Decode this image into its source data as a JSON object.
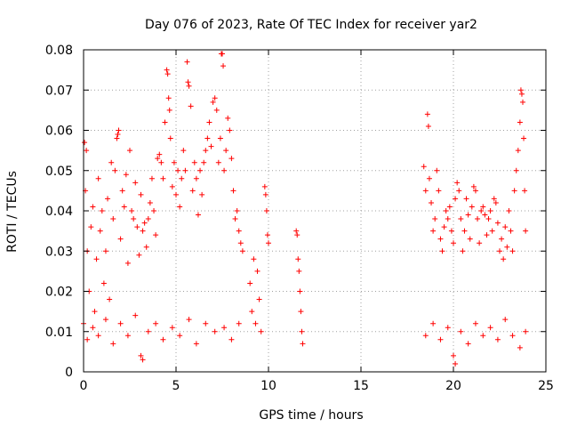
{
  "chart_data": {
    "type": "scatter",
    "title": "Day 076 of 2023, Rate Of TEC Index for receiver yar2",
    "xlabel": "GPS time / hours",
    "ylabel": "ROTI / TECUs",
    "xlim": [
      0,
      25
    ],
    "ylim": [
      0,
      0.08
    ],
    "x_ticks": [
      0,
      5,
      10,
      15,
      20,
      25
    ],
    "x_tick_labels": [
      "0",
      "5",
      "10",
      "15",
      "20",
      "25"
    ],
    "y_ticks": [
      0,
      0.01,
      0.02,
      0.03,
      0.04,
      0.05,
      0.06,
      0.07,
      0.08
    ],
    "y_tick_labels": [
      "0",
      "0.01",
      "0.02",
      "0.03",
      "0.04",
      "0.05",
      "0.06",
      "0.07",
      "0.08"
    ],
    "grid": true,
    "marker": "+",
    "color": "#ff0000",
    "series": [
      {
        "name": "yar2",
        "density_note": "dense plus-markers; values listed are representative readings",
        "points": [
          [
            0.0,
            0.012
          ],
          [
            0.05,
            0.057
          ],
          [
            0.1,
            0.045
          ],
          [
            0.15,
            0.055
          ],
          [
            0.2,
            0.03
          ],
          [
            0.3,
            0.02
          ],
          [
            0.4,
            0.036
          ],
          [
            0.5,
            0.041
          ],
          [
            0.6,
            0.015
          ],
          [
            0.7,
            0.028
          ],
          [
            0.8,
            0.048
          ],
          [
            0.9,
            0.035
          ],
          [
            1.0,
            0.04
          ],
          [
            1.1,
            0.022
          ],
          [
            1.2,
            0.03
          ],
          [
            1.3,
            0.043
          ],
          [
            1.4,
            0.018
          ],
          [
            1.5,
            0.052
          ],
          [
            1.6,
            0.038
          ],
          [
            1.7,
            0.05
          ],
          [
            1.8,
            0.058
          ],
          [
            1.85,
            0.059
          ],
          [
            1.9,
            0.06
          ],
          [
            2.0,
            0.033
          ],
          [
            2.1,
            0.045
          ],
          [
            2.2,
            0.041
          ],
          [
            2.3,
            0.049
          ],
          [
            2.4,
            0.027
          ],
          [
            2.5,
            0.055
          ],
          [
            2.6,
            0.04
          ],
          [
            2.7,
            0.038
          ],
          [
            2.8,
            0.047
          ],
          [
            2.9,
            0.036
          ],
          [
            3.0,
            0.029
          ],
          [
            3.1,
            0.044
          ],
          [
            3.2,
            0.035
          ],
          [
            3.3,
            0.037
          ],
          [
            3.4,
            0.031
          ],
          [
            3.5,
            0.038
          ],
          [
            3.6,
            0.042
          ],
          [
            3.7,
            0.048
          ],
          [
            3.8,
            0.04
          ],
          [
            3.9,
            0.034
          ],
          [
            4.0,
            0.053
          ],
          [
            4.1,
            0.054
          ],
          [
            4.2,
            0.052
          ],
          [
            4.3,
            0.048
          ],
          [
            4.4,
            0.062
          ],
          [
            4.5,
            0.075
          ],
          [
            4.55,
            0.074
          ],
          [
            4.6,
            0.068
          ],
          [
            4.65,
            0.065
          ],
          [
            4.7,
            0.058
          ],
          [
            4.8,
            0.046
          ],
          [
            4.9,
            0.052
          ],
          [
            5.0,
            0.044
          ],
          [
            5.1,
            0.05
          ],
          [
            5.2,
            0.041
          ],
          [
            5.3,
            0.048
          ],
          [
            5.4,
            0.055
          ],
          [
            5.5,
            0.05
          ],
          [
            5.6,
            0.077
          ],
          [
            5.65,
            0.072
          ],
          [
            5.7,
            0.071
          ],
          [
            5.8,
            0.066
          ],
          [
            5.9,
            0.045
          ],
          [
            6.0,
            0.052
          ],
          [
            6.1,
            0.048
          ],
          [
            6.2,
            0.039
          ],
          [
            6.3,
            0.05
          ],
          [
            6.4,
            0.044
          ],
          [
            6.5,
            0.052
          ],
          [
            6.6,
            0.055
          ],
          [
            6.7,
            0.058
          ],
          [
            6.8,
            0.062
          ],
          [
            6.9,
            0.056
          ],
          [
            7.0,
            0.067
          ],
          [
            7.1,
            0.068
          ],
          [
            7.2,
            0.065
          ],
          [
            7.3,
            0.052
          ],
          [
            7.4,
            0.058
          ],
          [
            7.45,
            0.079
          ],
          [
            7.5,
            0.079
          ],
          [
            7.55,
            0.076
          ],
          [
            7.6,
            0.05
          ],
          [
            7.7,
            0.055
          ],
          [
            7.8,
            0.063
          ],
          [
            7.9,
            0.06
          ],
          [
            8.0,
            0.053
          ],
          [
            8.1,
            0.045
          ],
          [
            8.2,
            0.038
          ],
          [
            8.3,
            0.04
          ],
          [
            8.4,
            0.035
          ],
          [
            8.5,
            0.032
          ],
          [
            8.6,
            0.03
          ],
          [
            9.0,
            0.022
          ],
          [
            9.1,
            0.015
          ],
          [
            9.2,
            0.028
          ],
          [
            9.3,
            0.012
          ],
          [
            9.4,
            0.025
          ],
          [
            9.5,
            0.018
          ],
          [
            9.6,
            0.01
          ],
          [
            9.8,
            0.046
          ],
          [
            9.85,
            0.044
          ],
          [
            9.9,
            0.04
          ],
          [
            9.95,
            0.034
          ],
          [
            10.0,
            0.032
          ],
          [
            11.5,
            0.035
          ],
          [
            11.55,
            0.034
          ],
          [
            11.6,
            0.028
          ],
          [
            11.65,
            0.025
          ],
          [
            11.7,
            0.02
          ],
          [
            11.75,
            0.015
          ],
          [
            11.8,
            0.01
          ],
          [
            11.85,
            0.007
          ],
          [
            18.4,
            0.051
          ],
          [
            18.5,
            0.045
          ],
          [
            18.6,
            0.064
          ],
          [
            18.65,
            0.061
          ],
          [
            18.7,
            0.048
          ],
          [
            18.8,
            0.042
          ],
          [
            18.9,
            0.035
          ],
          [
            19.0,
            0.038
          ],
          [
            19.1,
            0.05
          ],
          [
            19.2,
            0.045
          ],
          [
            19.3,
            0.033
          ],
          [
            19.4,
            0.03
          ],
          [
            19.5,
            0.036
          ],
          [
            19.6,
            0.04
          ],
          [
            19.7,
            0.038
          ],
          [
            19.8,
            0.041
          ],
          [
            19.9,
            0.035
          ],
          [
            20.0,
            0.032
          ],
          [
            20.1,
            0.043
          ],
          [
            20.2,
            0.047
          ],
          [
            20.3,
            0.045
          ],
          [
            20.4,
            0.038
          ],
          [
            20.5,
            0.03
          ],
          [
            20.6,
            0.035
          ],
          [
            20.7,
            0.043
          ],
          [
            20.8,
            0.039
          ],
          [
            20.9,
            0.033
          ],
          [
            21.0,
            0.041
          ],
          [
            21.1,
            0.046
          ],
          [
            21.2,
            0.045
          ],
          [
            21.3,
            0.038
          ],
          [
            21.4,
            0.032
          ],
          [
            21.5,
            0.04
          ],
          [
            21.6,
            0.041
          ],
          [
            21.7,
            0.039
          ],
          [
            21.8,
            0.034
          ],
          [
            21.9,
            0.038
          ],
          [
            22.0,
            0.04
          ],
          [
            22.1,
            0.035
          ],
          [
            22.2,
            0.043
          ],
          [
            22.3,
            0.042
          ],
          [
            22.4,
            0.037
          ],
          [
            22.5,
            0.03
          ],
          [
            22.6,
            0.033
          ],
          [
            22.7,
            0.028
          ],
          [
            22.8,
            0.036
          ],
          [
            22.9,
            0.031
          ],
          [
            23.0,
            0.04
          ],
          [
            23.1,
            0.035
          ],
          [
            23.2,
            0.03
          ],
          [
            23.3,
            0.045
          ],
          [
            23.4,
            0.05
          ],
          [
            23.5,
            0.055
          ],
          [
            23.6,
            0.062
          ],
          [
            23.65,
            0.07
          ],
          [
            23.7,
            0.069
          ],
          [
            23.75,
            0.067
          ],
          [
            23.8,
            0.058
          ],
          [
            23.85,
            0.045
          ],
          [
            23.9,
            0.035
          ],
          [
            0.2,
            0.008
          ],
          [
            0.5,
            0.011
          ],
          [
            0.8,
            0.009
          ],
          [
            1.2,
            0.013
          ],
          [
            1.6,
            0.007
          ],
          [
            2.0,
            0.012
          ],
          [
            2.4,
            0.009
          ],
          [
            2.8,
            0.014
          ],
          [
            3.1,
            0.004
          ],
          [
            3.2,
            0.003
          ],
          [
            3.5,
            0.01
          ],
          [
            3.9,
            0.012
          ],
          [
            4.3,
            0.008
          ],
          [
            4.8,
            0.011
          ],
          [
            5.2,
            0.009
          ],
          [
            5.7,
            0.013
          ],
          [
            6.1,
            0.007
          ],
          [
            6.6,
            0.012
          ],
          [
            7.1,
            0.01
          ],
          [
            7.6,
            0.011
          ],
          [
            8.0,
            0.008
          ],
          [
            8.4,
            0.012
          ],
          [
            18.5,
            0.009
          ],
          [
            18.9,
            0.012
          ],
          [
            19.3,
            0.008
          ],
          [
            19.7,
            0.011
          ],
          [
            20.0,
            0.004
          ],
          [
            20.1,
            0.002
          ],
          [
            20.4,
            0.01
          ],
          [
            20.8,
            0.007
          ],
          [
            21.2,
            0.012
          ],
          [
            21.6,
            0.009
          ],
          [
            22.0,
            0.011
          ],
          [
            22.4,
            0.008
          ],
          [
            22.8,
            0.013
          ],
          [
            23.2,
            0.009
          ],
          [
            23.6,
            0.006
          ],
          [
            23.9,
            0.01
          ]
        ]
      }
    ]
  }
}
